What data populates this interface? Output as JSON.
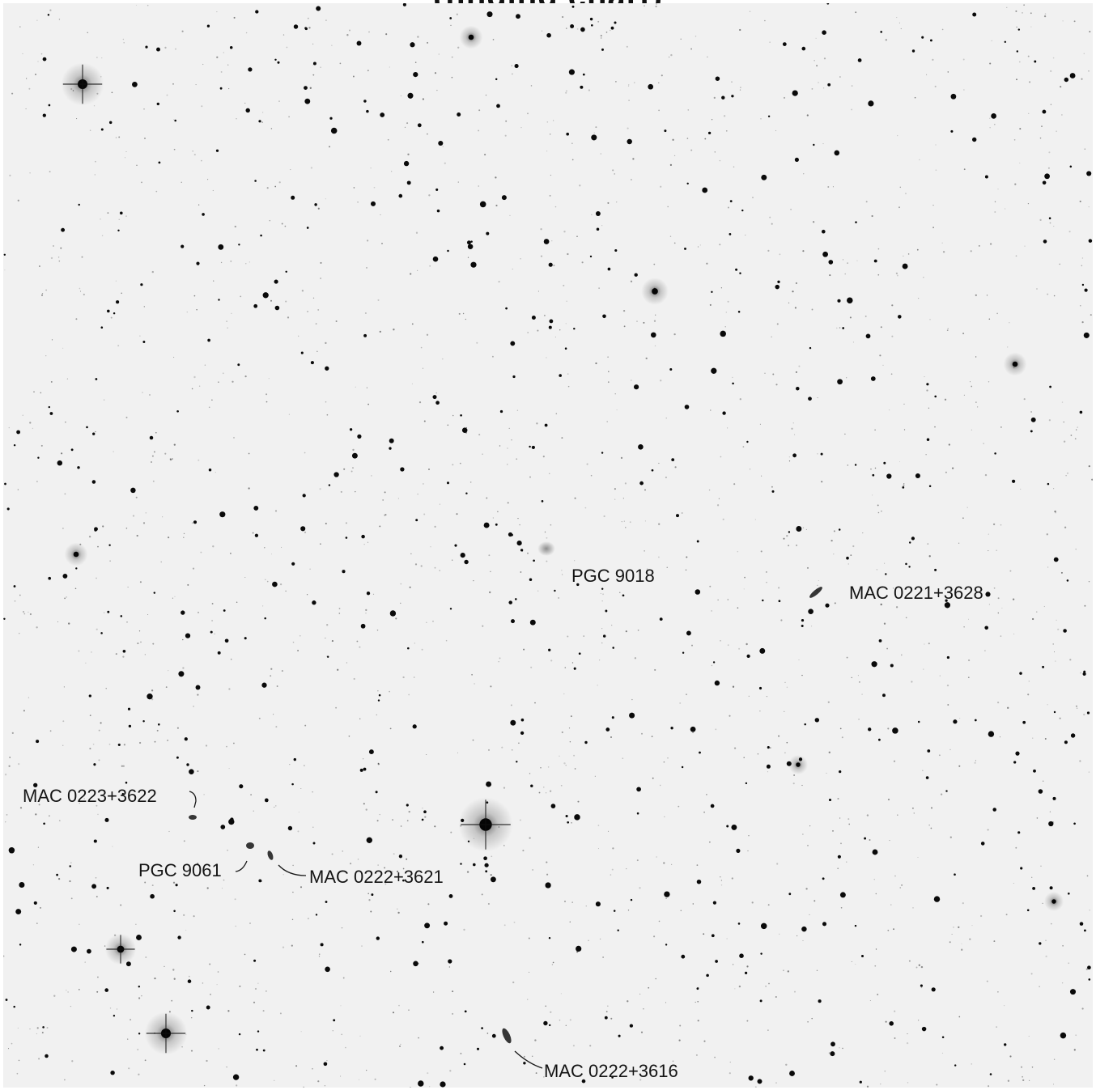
{
  "title_partial": "(finding chart)",
  "labels": {
    "pgc9018": "PGC 9018",
    "mac0221": "MAC 0221+3628",
    "mac0223": "MAC 0223+3622",
    "pgc9061": "PGC 9061",
    "mac0222_3621": "MAC 0222+3621",
    "mac0222_3616": "MAC 0222+3616"
  },
  "colors": {
    "sky_background": "#f1f1f1",
    "star": "#0a0a0a",
    "label_text": "#141414"
  }
}
